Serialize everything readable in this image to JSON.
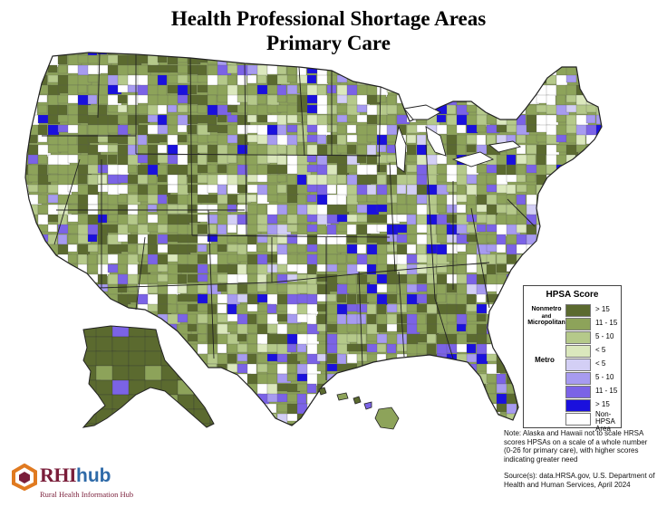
{
  "title": {
    "line1": "Health Professional Shortage Areas",
    "line2": "Primary Care"
  },
  "palette": {
    "nonmetro_gt15": "#5b6a2f",
    "nonmetro_11_15": "#8da35a",
    "nonmetro_5_10": "#b5c98a",
    "nonmetro_lt5": "#dbe8bd",
    "metro_lt5": "#d3cff5",
    "metro_5_10": "#a79bf0",
    "metro_11_15": "#7b63e6",
    "metro_gt15": "#1a10dd",
    "non_hpsa": "#ffffff",
    "boundary": "#222222"
  },
  "legend": {
    "title": "HPSA Score",
    "nonmetro_label_line1": "Nonmetro",
    "nonmetro_label_and": "and",
    "nonmetro_label_line2": "Micropolitan",
    "metro_label": "Metro",
    "items": [
      {
        "group": "nonmetro",
        "label": "> 15",
        "color_key": "nonmetro_gt15"
      },
      {
        "group": "nonmetro",
        "label": "11 - 15",
        "color_key": "nonmetro_11_15"
      },
      {
        "group": "nonmetro",
        "label": "5 - 10",
        "color_key": "nonmetro_5_10"
      },
      {
        "group": "nonmetro",
        "label": "< 5",
        "color_key": "nonmetro_lt5"
      },
      {
        "group": "metro",
        "label": "< 5",
        "color_key": "metro_lt5"
      },
      {
        "group": "metro",
        "label": "5 - 10",
        "color_key": "metro_5_10"
      },
      {
        "group": "metro",
        "label": "11 - 15",
        "color_key": "metro_11_15"
      },
      {
        "group": "metro",
        "label": "> 15",
        "color_key": "metro_gt15"
      },
      {
        "group": "none",
        "label_line1": "Non-HPSA",
        "label_line2": "Area",
        "color_key": "non_hpsa"
      }
    ]
  },
  "note": "Note: Alaska and Hawaii not to scale HRSA scores HPSAs on a scale of a whole number (0-26 for primary care), with higher scores indicating greater need",
  "source": "Source(s): data.HRSA.gov, U.S. Department of Health and Human Services, April 2024",
  "logo": {
    "word": "RHI",
    "hub": "hub",
    "subtitle": "Rural Health Information Hub",
    "mark_colors": [
      "#e07a20",
      "#7a1e3a"
    ]
  }
}
